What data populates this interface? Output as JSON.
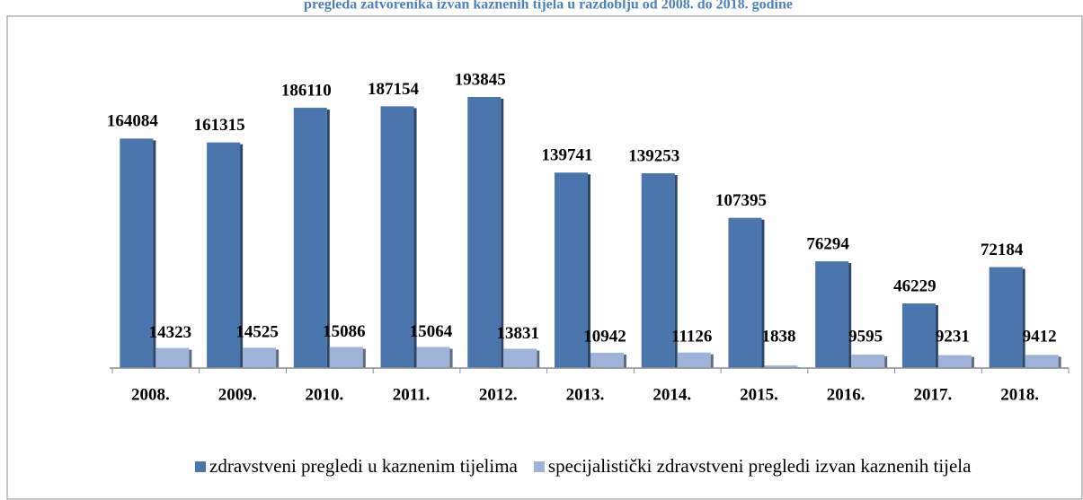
{
  "chart_data": {
    "type": "bar",
    "title": "pregleda zatvorenika izvan kaznenih tijela u razdoblju od 2008. do 2018. godine",
    "categories": [
      "2008.",
      "2009.",
      "2010.",
      "2011.",
      "2012.",
      "2013.",
      "2014.",
      "2015.",
      "2016.",
      "2017.",
      "2018."
    ],
    "series": [
      {
        "name": "zdravstveni pregledi u kaznenim tijelima",
        "color": "#4a76ad",
        "values": [
          164084,
          161315,
          186110,
          187154,
          193845,
          139741,
          139253,
          107395,
          76294,
          46229,
          72184
        ]
      },
      {
        "name": "specijalistički zdravstveni pregledi izvan kaznenih tijela",
        "color": "#9fb3d9",
        "values": [
          14323,
          14525,
          15086,
          15064,
          13831,
          10942,
          11126,
          1838,
          9595,
          9231,
          9412
        ]
      }
    ],
    "ylim": [
      0,
      200000
    ],
    "legend": "bottom"
  }
}
